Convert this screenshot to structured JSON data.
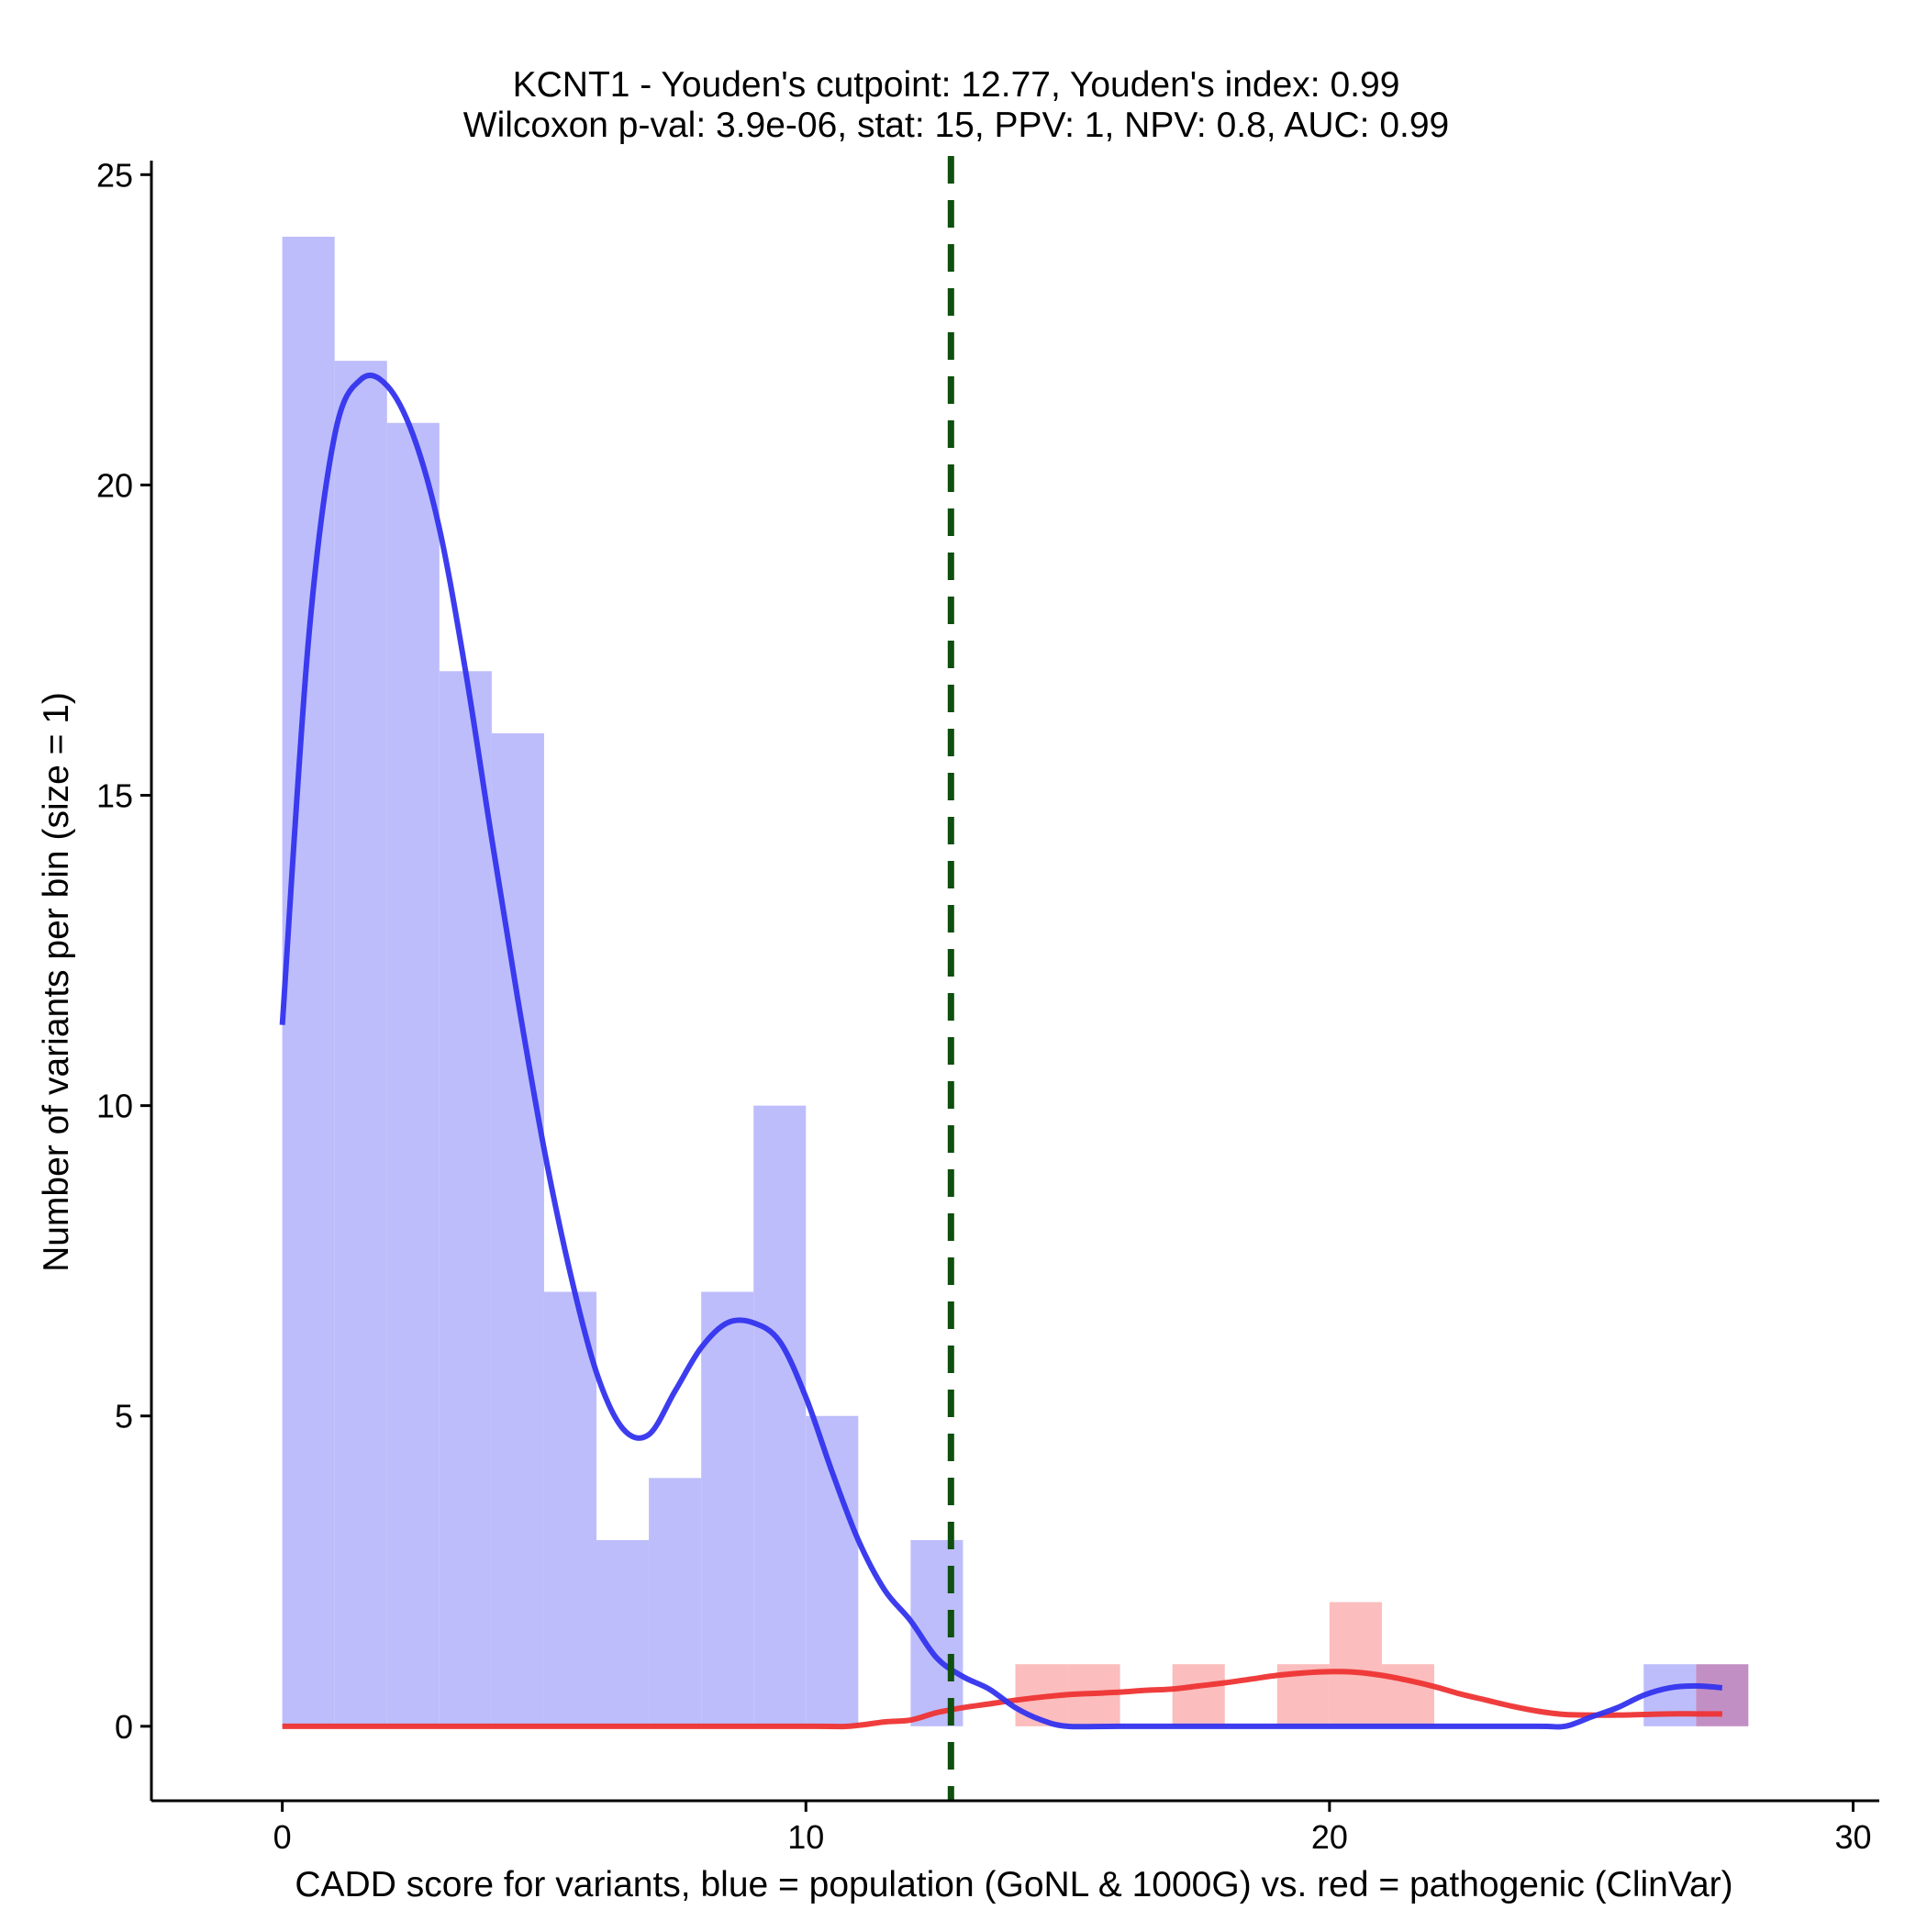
{
  "chart_data": {
    "type": "bar",
    "title": "KCNT1 - Youden's cutpoint: 12.77, Youden's index: 0.99",
    "subtitle": "Wilcoxon p-val: 3.9e-06, stat: 15, PPV: 1, NPV: 0.8, AUC: 0.99",
    "xlabel": "CADD score for variants, blue = population (GoNL & 1000G) vs. red = pathogenic (ClinVar)",
    "ylabel": "Number of variants per bin (size = 1)",
    "xlim": [
      -2.5,
      30.5
    ],
    "ylim": [
      -1.2,
      25.3
    ],
    "x_ticks": [
      0,
      10,
      20,
      30
    ],
    "y_ticks": [
      0,
      5,
      10,
      15,
      20,
      25
    ],
    "bin_size": 1,
    "cutpoint": 12.77,
    "colors": {
      "population": "#3333ee",
      "population_fill": "#bdbdfb",
      "pathogenic": "#ee3333",
      "pathogenic_fill": "#fbbdbd",
      "overlap_fill": "#c28fc4",
      "cutpoint": "#0f4f0f"
    },
    "series": [
      {
        "name": "population",
        "bins": [
          {
            "x": 0,
            "value": 24
          },
          {
            "x": 1,
            "value": 22
          },
          {
            "x": 2,
            "value": 21
          },
          {
            "x": 3,
            "value": 17
          },
          {
            "x": 4,
            "value": 16
          },
          {
            "x": 5,
            "value": 7
          },
          {
            "x": 6,
            "value": 3
          },
          {
            "x": 7,
            "value": 4
          },
          {
            "x": 8,
            "value": 7
          },
          {
            "x": 9,
            "value": 10
          },
          {
            "x": 10,
            "value": 5
          },
          {
            "x": 12,
            "value": 3
          },
          {
            "x": 26,
            "value": 1
          },
          {
            "x": 27,
            "value": 1
          }
        ],
        "density": [
          [
            0,
            11.3
          ],
          [
            0.5,
            17.5
          ],
          [
            1,
            20.8
          ],
          [
            1.5,
            21.7
          ],
          [
            2,
            21.6
          ],
          [
            2.5,
            20.8
          ],
          [
            3,
            19.3
          ],
          [
            3.5,
            17.0
          ],
          [
            4,
            14.3
          ],
          [
            4.5,
            11.7
          ],
          [
            5,
            9.3
          ],
          [
            5.5,
            7.3
          ],
          [
            6,
            5.7
          ],
          [
            6.5,
            4.8
          ],
          [
            7,
            4.7
          ],
          [
            7.5,
            5.4
          ],
          [
            8,
            6.1
          ],
          [
            8.5,
            6.5
          ],
          [
            9,
            6.5
          ],
          [
            9.5,
            6.2
          ],
          [
            10,
            5.3
          ],
          [
            10.5,
            4.1
          ],
          [
            11,
            3.0
          ],
          [
            11.5,
            2.2
          ],
          [
            12,
            1.7
          ],
          [
            12.5,
            1.1
          ],
          [
            13,
            0.8
          ],
          [
            13.5,
            0.6
          ],
          [
            14,
            0.3
          ],
          [
            14.5,
            0.1
          ],
          [
            15,
            0
          ],
          [
            16,
            0
          ],
          [
            18,
            0
          ],
          [
            20,
            0
          ],
          [
            22,
            0
          ],
          [
            24,
            0
          ],
          [
            24.5,
            0
          ],
          [
            25,
            0.15
          ],
          [
            25.5,
            0.3
          ],
          [
            26,
            0.5
          ],
          [
            26.5,
            0.62
          ],
          [
            27,
            0.65
          ],
          [
            27.5,
            0.62
          ]
        ]
      },
      {
        "name": "pathogenic",
        "bins": [
          {
            "x": 14,
            "value": 1
          },
          {
            "x": 15,
            "value": 1
          },
          {
            "x": 17,
            "value": 1
          },
          {
            "x": 19,
            "value": 1
          },
          {
            "x": 20,
            "value": 2
          },
          {
            "x": 21,
            "value": 1
          },
          {
            "x": 27,
            "value": 1
          }
        ],
        "density": [
          [
            0,
            0
          ],
          [
            5,
            0
          ],
          [
            10,
            0
          ],
          [
            10.8,
            0
          ],
          [
            11.5,
            0.07
          ],
          [
            12,
            0.1
          ],
          [
            12.5,
            0.22
          ],
          [
            13,
            0.3
          ],
          [
            13.5,
            0.36
          ],
          [
            14,
            0.42
          ],
          [
            14.5,
            0.47
          ],
          [
            15,
            0.51
          ],
          [
            15.5,
            0.53
          ],
          [
            16,
            0.55
          ],
          [
            16.5,
            0.58
          ],
          [
            17,
            0.6
          ],
          [
            17.5,
            0.65
          ],
          [
            18,
            0.7
          ],
          [
            18.5,
            0.76
          ],
          [
            19,
            0.82
          ],
          [
            19.5,
            0.86
          ],
          [
            20,
            0.88
          ],
          [
            20.5,
            0.87
          ],
          [
            21,
            0.82
          ],
          [
            21.5,
            0.74
          ],
          [
            22,
            0.64
          ],
          [
            22.5,
            0.52
          ],
          [
            23,
            0.42
          ],
          [
            23.5,
            0.32
          ],
          [
            24,
            0.24
          ],
          [
            24.5,
            0.19
          ],
          [
            25,
            0.18
          ],
          [
            25.5,
            0.18
          ],
          [
            26,
            0.19
          ],
          [
            26.5,
            0.2
          ],
          [
            27,
            0.2
          ],
          [
            27.5,
            0.2
          ]
        ]
      }
    ],
    "grid": false,
    "legend": "none"
  }
}
